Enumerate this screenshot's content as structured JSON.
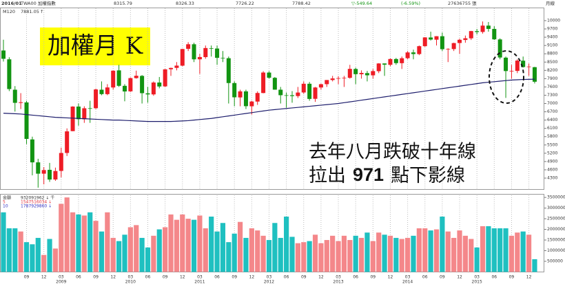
{
  "chart_data": [
    {
      "type": "candlestick",
      "period": "2016/01",
      "symbol": "TWA00 加權指數",
      "change": "▽-549.64",
      "change_pct": "(-6.59%)",
      "volume_text": "27636755 張",
      "interval": "月線",
      "title": "加權月 K",
      "annotation_line1": "去年八月跌破十年線",
      "annotation_line2": [
        "拉出",
        "971",
        "點下影線"
      ],
      "categories": [
        null,
        null,
        null,
        null,
        "09",
        null,
        null,
        "12",
        null,
        null,
        "03",
        null,
        null,
        "06",
        null,
        null,
        "09",
        null,
        null,
        "12",
        null,
        null,
        "03",
        null,
        null,
        "06",
        null,
        null,
        "09",
        null,
        null,
        "12",
        null,
        null,
        "03",
        null,
        null,
        "06",
        null,
        null,
        "09",
        null,
        null,
        "12",
        null,
        null,
        "03",
        null,
        null,
        "06",
        null,
        null,
        "09",
        null,
        null,
        "12",
        null,
        null,
        "03",
        null,
        null,
        "06",
        null,
        null,
        "09",
        null,
        null,
        "12",
        null,
        null,
        "03",
        null,
        null,
        "06",
        null,
        null,
        "09",
        null,
        null,
        "12",
        null,
        null,
        "03",
        null,
        null,
        "06",
        null,
        null,
        "09",
        null,
        null,
        "12",
        null
      ],
      "category_years": [
        null,
        null,
        null,
        null,
        null,
        null,
        null,
        null,
        null,
        null,
        "2009",
        null,
        null,
        null,
        null,
        null,
        null,
        null,
        null,
        null,
        null,
        null,
        "2010",
        null,
        null,
        null,
        null,
        null,
        null,
        null,
        null,
        null,
        null,
        null,
        "2011",
        null,
        null,
        null,
        null,
        null,
        null,
        null,
        null,
        null,
        null,
        null,
        "2012",
        null,
        null,
        null,
        null,
        null,
        null,
        null,
        null,
        null,
        null,
        null,
        "2013",
        null,
        null,
        null,
        null,
        null,
        null,
        null,
        null,
        null,
        null,
        null,
        "2014",
        null,
        null,
        null,
        null,
        null,
        null,
        null,
        null,
        null,
        null,
        null,
        "2015",
        null,
        null,
        null,
        null,
        null,
        null,
        null,
        null,
        null,
        null
      ],
      "open": [
        8919,
        8600,
        7500,
        7020,
        7040,
        5700,
        4870,
        4460,
        4600,
        4250,
        4560,
        5210,
        6000,
        6890,
        6430,
        6830,
        6830,
        7500,
        7340,
        7580,
        8200,
        7640,
        7440,
        7920,
        8000,
        7370,
        7330,
        7760,
        7620,
        8240,
        8290,
        8370,
        8980,
        9145,
        8600,
        8680,
        9000,
        8990,
        8650,
        8640,
        7740,
        7220,
        7440,
        6900,
        7070,
        7380,
        8120,
        7930,
        7500,
        7300,
        7300,
        7270,
        7400,
        7715,
        7170,
        7580,
        7700,
        7850,
        7900,
        7918,
        7930,
        8250,
        8060,
        8100,
        8020,
        8170,
        8450,
        8400,
        8610,
        8460,
        8640,
        8850,
        8790,
        9075,
        9390,
        9310,
        9436,
        8960,
        8970,
        9190,
        9300,
        9360,
        9620,
        9590,
        9820,
        9700,
        9320,
        8660,
        8170,
        8180,
        8550,
        8320,
        8315.79
      ],
      "high": [
        9309,
        8674,
        7630,
        7376,
        7100,
        5800,
        5000,
        4700,
        4850,
        4680,
        5400,
        6100,
        6900,
        7000,
        6900,
        7100,
        7540,
        7800,
        7700,
        8200,
        8400,
        7700,
        7940,
        8190,
        8030,
        7600,
        7800,
        7960,
        8250,
        8300,
        8500,
        8980,
        9220,
        9200,
        8800,
        9100,
        9100,
        9100,
        8900,
        8700,
        7800,
        7500,
        7500,
        7100,
        7440,
        8170,
        8170,
        7960,
        7600,
        7400,
        7450,
        7600,
        7800,
        7780,
        7600,
        7720,
        7850,
        8000,
        7990,
        8000,
        8400,
        8300,
        8200,
        8180,
        8250,
        8460,
        8450,
        8630,
        8650,
        8700,
        8900,
        8950,
        9100,
        9400,
        9600,
        9440,
        9570,
        9000,
        9200,
        9350,
        9460,
        9630,
        9700,
        9970,
        9950,
        9800,
        9360,
        8700,
        8400,
        8600,
        8700,
        8450,
        8326.33
      ],
      "low": [
        8520,
        7450,
        6708,
        6800,
        5530,
        4400,
        3955,
        4075,
        4164,
        4200,
        4328,
        5100,
        6000,
        6200,
        6300,
        6300,
        6800,
        7300,
        7300,
        7500,
        7600,
        7080,
        7420,
        7900,
        7000,
        7030,
        7280,
        7550,
        7600,
        8000,
        8200,
        8350,
        8900,
        8500,
        8070,
        8620,
        8700,
        8400,
        8500,
        7000,
        6900,
        6900,
        6800,
        6600,
        6950,
        7370,
        7900,
        7500,
        7000,
        6850,
        7030,
        7200,
        7350,
        7100,
        7060,
        7500,
        7600,
        7800,
        7700,
        7600,
        7900,
        7700,
        7900,
        7800,
        7900,
        8100,
        8000,
        8350,
        8400,
        8250,
        8600,
        8600,
        8750,
        9050,
        9280,
        9100,
        8900,
        8500,
        8900,
        8800,
        9200,
        9300,
        9500,
        9530,
        9600,
        9300,
        8600,
        7203,
        7900,
        8100,
        8300,
        8000,
        7726.22
      ],
      "close": [
        8619,
        7523,
        7024,
        7046,
        5719,
        4870,
        4460,
        4591,
        4248,
        4557,
        5210,
        5992,
        6890,
        6432,
        6828,
        6825,
        7509,
        7340,
        7582,
        8188,
        7640,
        7436,
        7920,
        8004,
        7374,
        7329,
        7760,
        7616,
        8237,
        8287,
        8372,
        8972,
        9145,
        8599,
        8683,
        9008,
        8990,
        8653,
        8644,
        7741,
        7225,
        7440,
        6904,
        7072,
        7381,
        8121,
        7933,
        7501,
        7301,
        7296,
        7270,
        7397,
        7715,
        7166,
        7580,
        7699,
        7850,
        7907,
        7918,
        7930,
        8254,
        8062,
        8107,
        8022,
        8173,
        8450,
        8406,
        8611,
        8462,
        8639,
        8849,
        8791,
        9075,
        9393,
        9315,
        9436,
        8966,
        8974,
        9187,
        9307,
        9361,
        9622,
        9586,
        9820,
        9701,
        9323,
        8665,
        8175,
        8181,
        8554,
        8320,
        8338.06,
        7788.42
      ],
      "up_color": "#ee1c25",
      "down_color": "#129412",
      "ma": {
        "name": "M120",
        "arrow": "↑",
        "color": "#1b1b6b",
        "values": [
          6650,
          6640,
          6630,
          6620,
          6600,
          6580,
          6560,
          6540,
          6520,
          6500,
          6490,
          6480,
          6470,
          6460,
          6450,
          6440,
          6430,
          6420,
          6410,
          6400,
          6400,
          6390,
          6380,
          6370,
          6360,
          6350,
          6350,
          6350,
          6350,
          6350,
          6360,
          6370,
          6380,
          6400,
          6420,
          6440,
          6460,
          6490,
          6520,
          6550,
          6580,
          6610,
          6640,
          6670,
          6700,
          6730,
          6760,
          6780,
          6800,
          6820,
          6840,
          6860,
          6880,
          6900,
          6920,
          6940,
          6960,
          6980,
          7000,
          7030,
          7060,
          7090,
          7120,
          7150,
          7180,
          7210,
          7240,
          7270,
          7300,
          7330,
          7360,
          7390,
          7420,
          7450,
          7480,
          7510,
          7540,
          7570,
          7600,
          7630,
          7660,
          7690,
          7720,
          7750,
          7770,
          7790,
          7810,
          7830,
          7850,
          7860,
          7870,
          7875,
          7881.05
        ]
      },
      "ylim": [
        3902,
        10448
      ],
      "yticks": [
        4300,
        4600,
        4900,
        5200,
        5500,
        5800,
        6100,
        6400,
        6700,
        7000,
        7300,
        7600,
        7900,
        8200,
        8500,
        8800,
        9100,
        9400,
        9700,
        10000
      ]
    },
    {
      "type": "bar",
      "label": "金額",
      "label_value": "932091962 ↓ 千",
      "legend": [
        {
          "name": "5",
          "value": "1547516034 ↓",
          "color": "#e0303a"
        },
        {
          "name": "10",
          "value": "1787929860 ↓",
          "color": "#3030c0"
        }
      ],
      "values": [
        2800000,
        2050000,
        2050000,
        1900000,
        1400000,
        1300000,
        1600000,
        800000,
        1550000,
        1100000,
        3200000,
        3500000,
        2800000,
        2700000,
        2650000,
        2800000,
        2400000,
        1900000,
        2800000,
        1600000,
        1450000,
        1750000,
        2100000,
        2200000,
        1600000,
        1150000,
        1700000,
        2000000,
        2100000,
        2700000,
        2450000,
        2700000,
        2500000,
        2450000,
        2650000,
        2050000,
        2600000,
        1900000,
        2300000,
        1400000,
        1800000,
        2350000,
        1600000,
        2050000,
        1950000,
        1700000,
        1500000,
        2300000,
        1600000,
        2600000,
        1650000,
        1350000,
        1400000,
        1450000,
        1750000,
        1350000,
        1500000,
        1700000,
        1450000,
        1700000,
        1500000,
        1700000,
        1600000,
        1850000,
        1450000,
        1850000,
        1750000,
        1700000,
        1600000,
        1550000,
        1600000,
        1700000,
        2050000,
        2050000,
        1950000,
        2000000,
        2600000,
        1900000,
        1600000,
        1950000,
        1700000,
        1550000,
        1150000,
        2150000,
        2150000,
        2050000,
        2050000,
        2050000,
        1700000,
        1850000,
        1900000,
        1750000,
        600000
      ],
      "up_color": "#f4878a",
      "down_color": "#1fc0c0",
      "ylim": [
        0,
        3600000
      ],
      "yticks": [
        500000,
        1000000,
        1500000,
        2000000,
        2500000,
        3000000,
        3500000
      ]
    }
  ]
}
